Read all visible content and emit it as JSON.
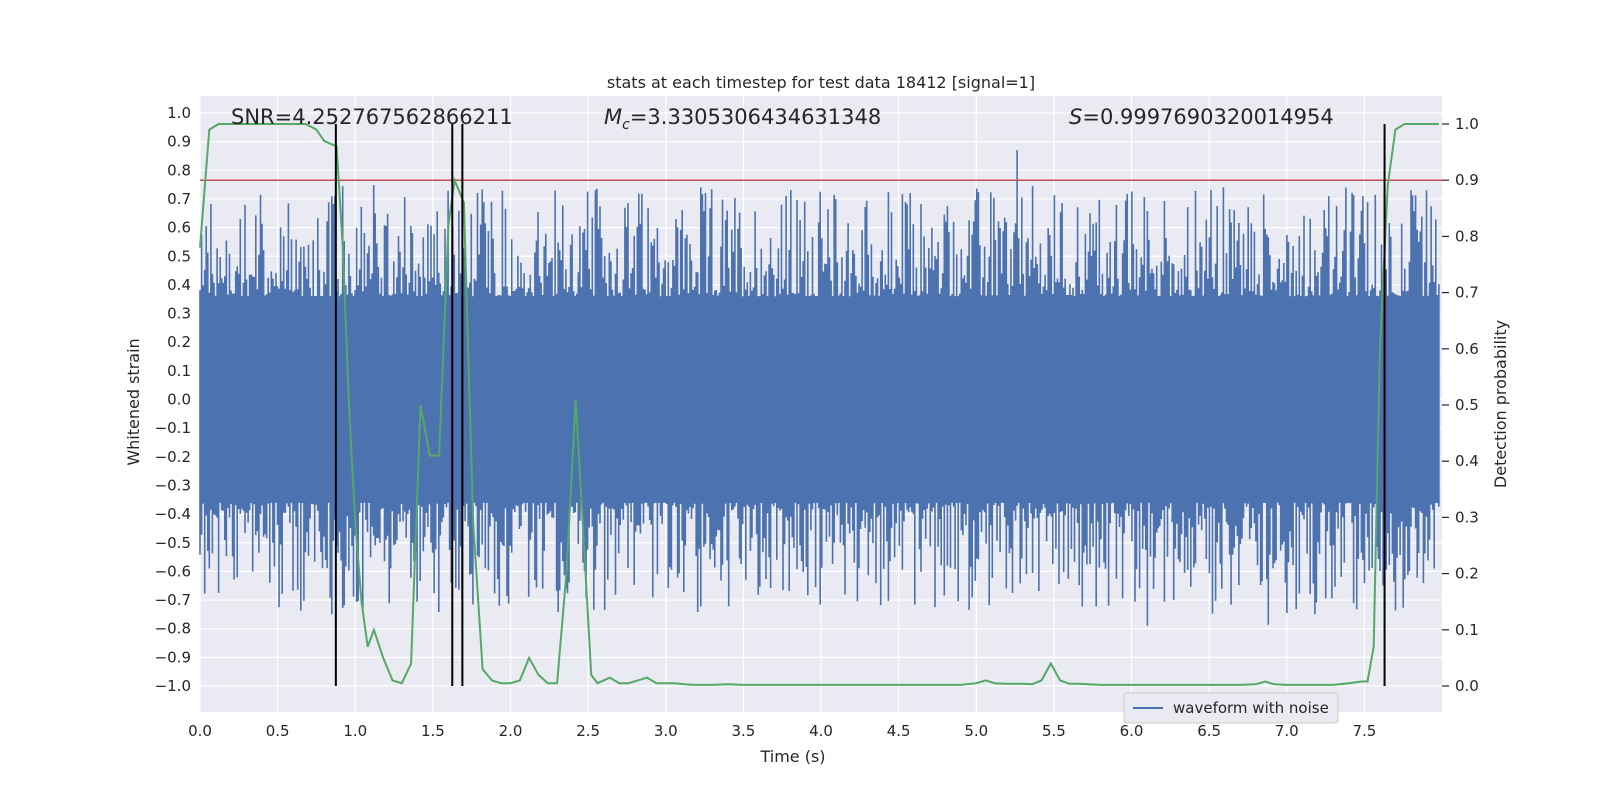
{
  "chart_data": {
    "type": "line",
    "title": "stats at each timestep for test data 18412 [signal=1]",
    "xlabel": "Time (s)",
    "ylabel_left": "Whitened strain",
    "ylabel_right": "Detection probability",
    "xlim": [
      0.0,
      8.0
    ],
    "ylim_left": [
      -1.1,
      1.05
    ],
    "ylim_right": [
      -0.05,
      1.05
    ],
    "x_ticks": [
      "0.0",
      "0.5",
      "1.0",
      "1.5",
      "2.0",
      "2.5",
      "3.0",
      "3.5",
      "4.0",
      "4.5",
      "5.0",
      "5.5",
      "6.0",
      "6.5",
      "7.0",
      "7.5"
    ],
    "y_ticks_left": [
      "1.0",
      "0.9",
      "0.8",
      "0.7",
      "0.6",
      "0.5",
      "0.4",
      "0.3",
      "0.2",
      "0.1",
      "0.0",
      "−0.1",
      "−0.2",
      "−0.3",
      "−0.4",
      "−0.5",
      "−0.6",
      "−0.7",
      "−0.8",
      "−0.9",
      "−1.0"
    ],
    "y_ticks_right": [
      "1.0",
      "0.9",
      "0.8",
      "0.7",
      "0.6",
      "0.5",
      "0.4",
      "0.3",
      "0.2",
      "0.1",
      "0.0"
    ],
    "annotations": {
      "snr": "SNR=4.252767562866211",
      "mc_symbol": "M",
      "mc_sub": "c",
      "mc_value": "=3.3305306434631348",
      "s_symbol": "S",
      "s_value": "=0.9997690320014954"
    },
    "threshold": {
      "value": 0.9,
      "axis": "right",
      "color": "#c44e52"
    },
    "vertical_lines": [
      0.875,
      1.625,
      1.69,
      7.63
    ],
    "legend": {
      "label": "waveform with noise",
      "placement": "lower-right"
    },
    "waveform": {
      "name": "waveform with noise",
      "color": "#4c72b0",
      "band_core": 0.36,
      "band_max": 0.75,
      "n_samples": 800
    },
    "probability": {
      "name": "detection probability",
      "color": "#55a868",
      "x": [
        0.0,
        0.06,
        0.12,
        0.2,
        0.3,
        0.4,
        0.5,
        0.6,
        0.68,
        0.75,
        0.8,
        0.88,
        0.92,
        0.96,
        1.0,
        1.04,
        1.08,
        1.12,
        1.18,
        1.24,
        1.3,
        1.36,
        1.42,
        1.48,
        1.54,
        1.6,
        1.64,
        1.7,
        1.76,
        1.82,
        1.88,
        1.94,
        2.0,
        2.06,
        2.12,
        2.18,
        2.24,
        2.3,
        2.36,
        2.42,
        2.48,
        2.52,
        2.56,
        2.6,
        2.64,
        2.7,
        2.76,
        2.82,
        2.88,
        2.94,
        3.0,
        3.06,
        3.12,
        3.18,
        3.24,
        3.3,
        3.4,
        3.5,
        3.6,
        3.7,
        3.8,
        3.9,
        4.0,
        4.1,
        4.2,
        4.3,
        4.4,
        4.5,
        4.6,
        4.7,
        4.8,
        4.9,
        5.0,
        5.06,
        5.12,
        5.18,
        5.24,
        5.3,
        5.36,
        5.42,
        5.48,
        5.54,
        5.6,
        5.66,
        5.72,
        5.8,
        5.9,
        6.0,
        6.1,
        6.2,
        6.3,
        6.4,
        6.5,
        6.6,
        6.7,
        6.8,
        6.86,
        6.92,
        7.0,
        7.1,
        7.2,
        7.3,
        7.4,
        7.48,
        7.52,
        7.56,
        7.6,
        7.65,
        7.7,
        7.76,
        7.82,
        7.9,
        7.98
      ],
      "y": [
        0.78,
        0.99,
        1.0,
        1.0,
        1.0,
        1.0,
        1.0,
        1.0,
        1.0,
        0.99,
        0.97,
        0.96,
        0.78,
        0.5,
        0.29,
        0.15,
        0.07,
        0.1,
        0.05,
        0.01,
        0.005,
        0.04,
        0.5,
        0.41,
        0.41,
        0.82,
        0.9,
        0.86,
        0.29,
        0.03,
        0.01,
        0.005,
        0.005,
        0.01,
        0.05,
        0.02,
        0.005,
        0.005,
        0.2,
        0.51,
        0.22,
        0.02,
        0.005,
        0.01,
        0.015,
        0.005,
        0.005,
        0.01,
        0.015,
        0.005,
        0.005,
        0.005,
        0.003,
        0.002,
        0.002,
        0.002,
        0.003,
        0.002,
        0.002,
        0.002,
        0.002,
        0.002,
        0.002,
        0.002,
        0.002,
        0.002,
        0.002,
        0.002,
        0.002,
        0.002,
        0.002,
        0.002,
        0.005,
        0.01,
        0.005,
        0.004,
        0.004,
        0.004,
        0.003,
        0.01,
        0.04,
        0.01,
        0.004,
        0.004,
        0.003,
        0.002,
        0.002,
        0.002,
        0.002,
        0.002,
        0.002,
        0.002,
        0.002,
        0.002,
        0.002,
        0.003,
        0.008,
        0.003,
        0.002,
        0.002,
        0.002,
        0.002,
        0.005,
        0.008,
        0.008,
        0.07,
        0.6,
        0.89,
        0.99,
        1.0,
        1.0,
        1.0,
        1.0
      ]
    }
  },
  "colors": {
    "plot_bg": "#eaeaf2",
    "grid": "#ffffff",
    "vline": "#000000"
  }
}
